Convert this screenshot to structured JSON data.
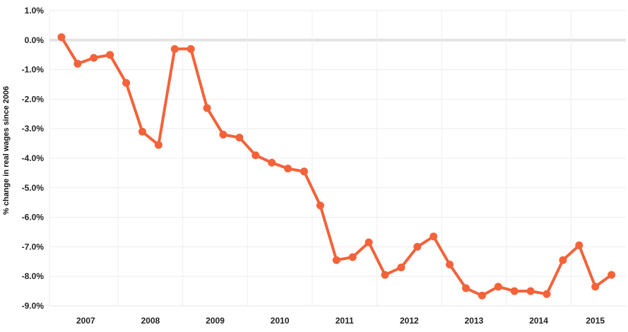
{
  "chart_data": {
    "type": "line",
    "title": "",
    "xlabel": "",
    "ylabel": "% change in real wages since 2006",
    "ylim": [
      -9.0,
      1.0
    ],
    "y_ticks": [
      "1.0%",
      "0.0%",
      "-1.0%",
      "-2.0%",
      "-3.0%",
      "-4.0%",
      "-5.0%",
      "-6.0%",
      "-7.0%",
      "-8.0%",
      "-9.0%"
    ],
    "y_tick_values": [
      1,
      0,
      -1,
      -2,
      -3,
      -4,
      -5,
      -6,
      -7,
      -8,
      -9
    ],
    "x_tick_labels": [
      "2007",
      "2008",
      "2009",
      "2010",
      "2011",
      "2012",
      "2013",
      "2014",
      "2015"
    ],
    "x_tick_index": [
      1.5,
      5.5,
      9.5,
      13.5,
      17.5,
      21.5,
      25.5,
      29.5,
      33
    ],
    "grid": true,
    "line_color": "#f4623a",
    "series": [
      {
        "values": [
          0.1,
          -0.8,
          -0.6,
          -0.5,
          -1.45,
          -3.1,
          -3.55,
          -0.3,
          -0.3,
          -2.3,
          -3.2,
          -3.3,
          -3.9,
          -4.15,
          -4.35,
          -4.45,
          -5.6,
          -7.45,
          -7.35,
          -6.85,
          -7.95,
          -7.7,
          -7.0,
          -6.65,
          -7.6,
          -8.4,
          -8.65,
          -8.35,
          -8.5,
          -8.5,
          -8.6,
          -7.45,
          -6.95,
          -8.35,
          -7.95
        ]
      }
    ]
  }
}
